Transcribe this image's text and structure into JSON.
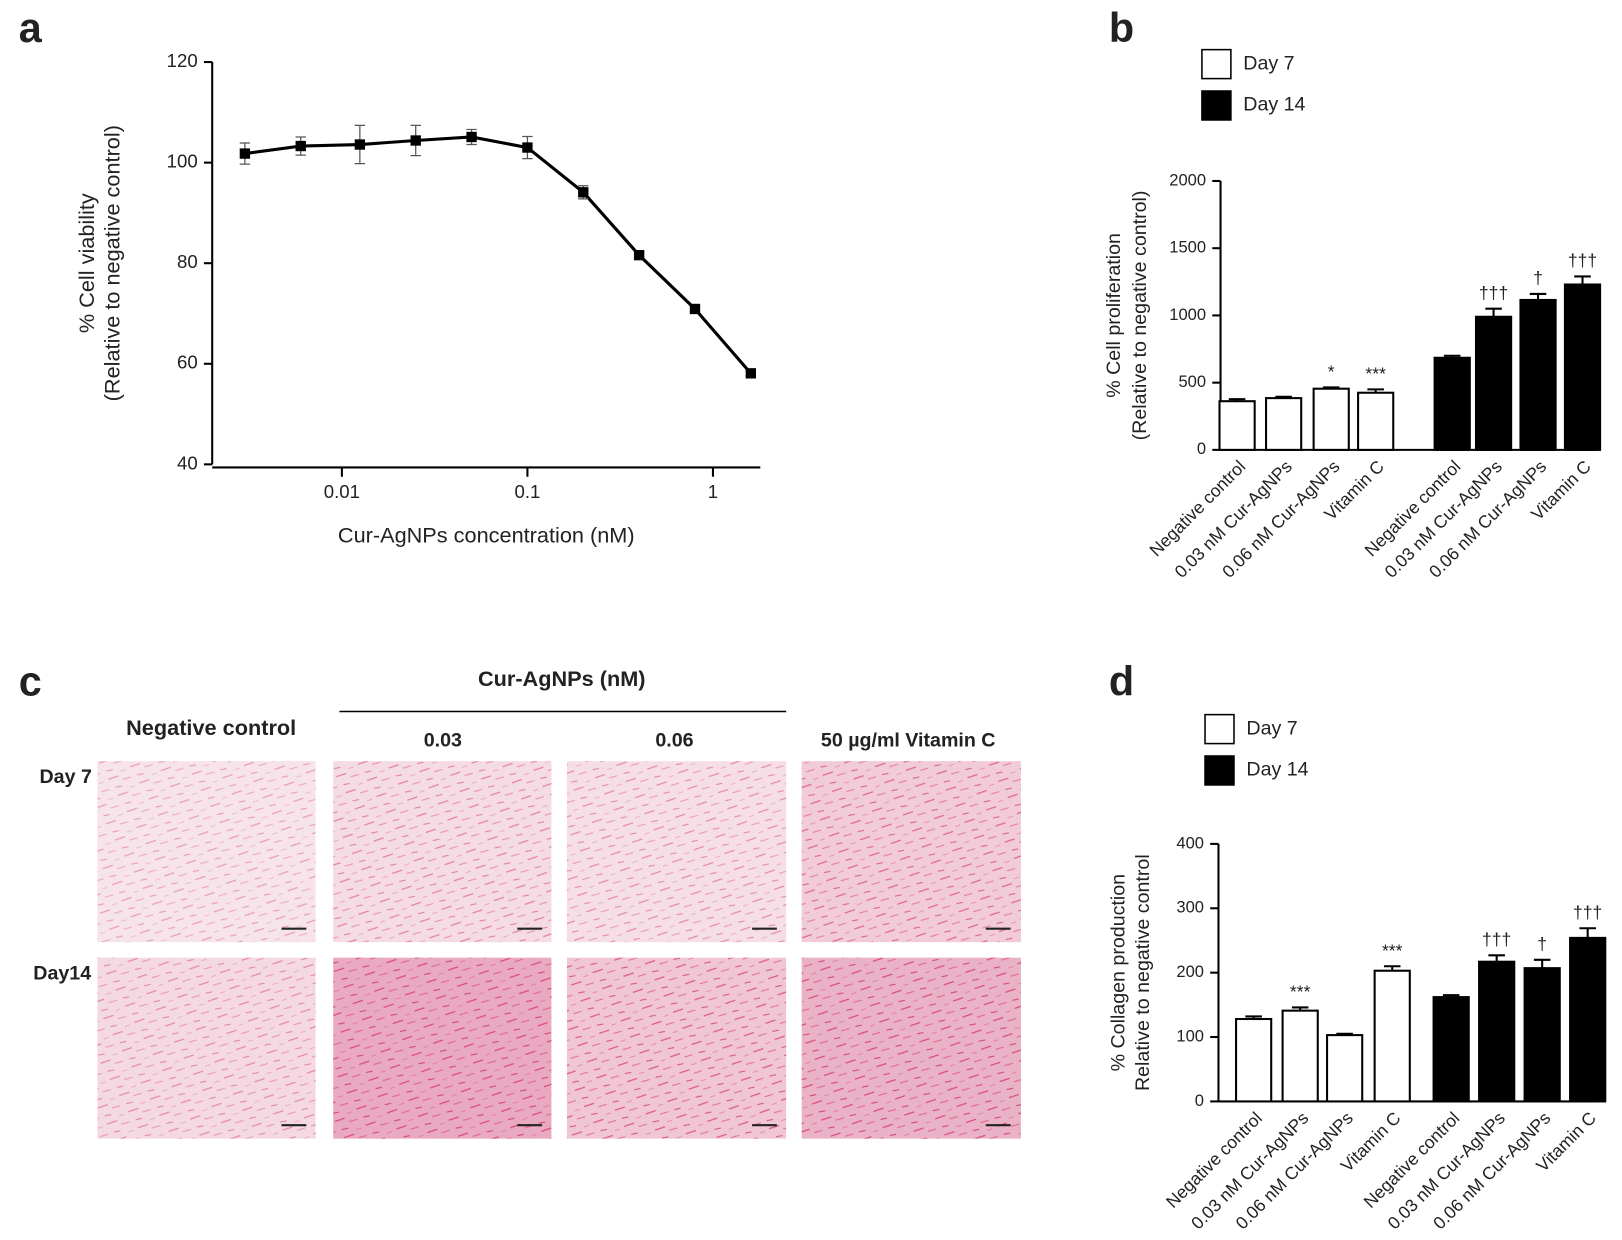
{
  "chart_data": [
    {
      "panel": "a",
      "type": "line",
      "x": [
        0.003,
        0.006,
        0.0125,
        0.025,
        0.05,
        0.1,
        0.2,
        0.4,
        0.8,
        1.6
      ],
      "values": [
        101.8,
        103.3,
        103.6,
        104.4,
        105.1,
        103.0,
        94.1,
        81.6,
        70.9,
        58.1
      ],
      "errors": [
        2.1,
        1.8,
        3.8,
        3.0,
        1.5,
        2.2,
        1.3,
        0.5,
        0.5,
        0.5
      ],
      "xscale": "log",
      "xlim": [
        0.002,
        1.8
      ],
      "xticks": [
        0.01,
        0.1,
        1
      ],
      "ylim": [
        40,
        120
      ],
      "yticks": [
        40,
        60,
        80,
        100,
        120
      ],
      "xlabel": "Cur-AgNPs concentration (nM)",
      "ylabel": [
        "% Cell viability",
        "(Relative to negative control)"
      ],
      "color": "#000000"
    },
    {
      "panel": "b",
      "type": "bar",
      "categories": [
        "Negative control",
        "0.03 nM Cur-AgNPs",
        "0.06 nM Cur-AgNPs",
        "Vitamin C"
      ],
      "series": [
        {
          "name": "Day 7",
          "color": "#ffffff",
          "values": [
            362,
            385,
            455,
            425
          ],
          "errors": [
            15,
            10,
            10,
            25
          ],
          "annotations": [
            null,
            null,
            "*",
            "***"
          ]
        },
        {
          "name": "Day 14",
          "color": "#000000",
          "values": [
            685,
            990,
            1115,
            1230
          ],
          "errors": [
            15,
            60,
            45,
            60
          ],
          "annotations": [
            null,
            "†††",
            "†",
            "†††"
          ]
        }
      ],
      "ylim": [
        0,
        2000
      ],
      "yticks": [
        0,
        500,
        1000,
        1500,
        2000
      ],
      "ylabel": [
        "% Cell proliferation",
        "(Relative to negative control)"
      ]
    },
    {
      "panel": "d",
      "type": "bar",
      "categories": [
        "Negative control",
        "0.03 nM Cur-AgNPs",
        "0.06 nM Cur-AgNPs",
        "Vitamin C"
      ],
      "series": [
        {
          "name": "Day 7",
          "color": "#ffffff",
          "values": [
            128,
            141,
            103,
            203
          ],
          "errors": [
            4,
            5,
            2,
            7
          ],
          "annotations": [
            null,
            "***",
            null,
            "***"
          ]
        },
        {
          "name": "Day 14",
          "color": "#000000",
          "values": [
            162,
            217,
            207,
            254
          ],
          "errors": [
            3,
            10,
            13,
            15
          ],
          "annotations": [
            null,
            "†††",
            "†",
            "†††"
          ]
        }
      ],
      "ylim": [
        0,
        400
      ],
      "yticks": [
        0,
        100,
        200,
        300,
        400
      ],
      "ylabel": [
        "% Collagen production",
        "Relative to negative control"
      ]
    }
  ],
  "panel_c": {
    "panel": "c",
    "header": "Cur-AgNPs (nM)",
    "columns": [
      "Negative control",
      "0.03",
      "0.06",
      "50 µg/ml Vitamin C"
    ],
    "rows": [
      "Day 7",
      "Day14"
    ]
  }
}
